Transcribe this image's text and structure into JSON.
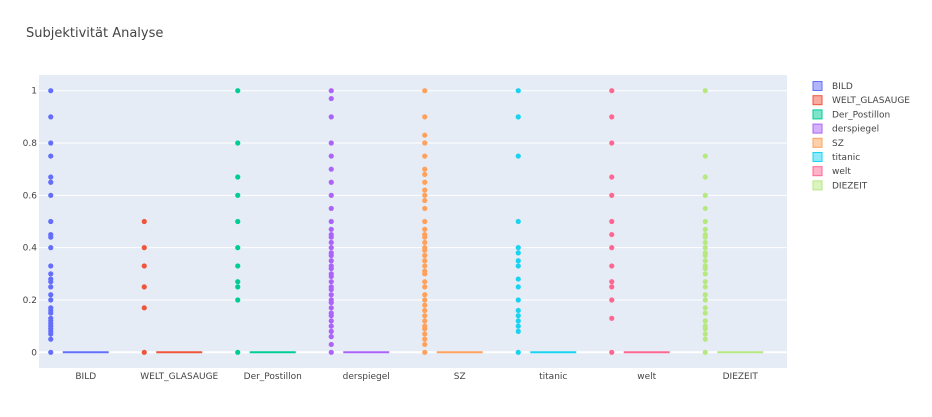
{
  "chart_data": {
    "type": "box",
    "title": "Subjektivität Analyse",
    "ylim": [
      -0.06,
      1.06
    ],
    "yticks": [
      0,
      0.2,
      0.4,
      0.6,
      0.8,
      1
    ],
    "ytick_labels": [
      "0",
      "0.2",
      "0.4",
      "0.6",
      "0.8",
      "1"
    ],
    "grid": true,
    "legend_position": "right",
    "categories": [
      "BILD",
      "WELT_GLASAUGE",
      "Der_Postillon",
      "derspiegel",
      "SZ",
      "titanic",
      "welt",
      "DIEZEIT"
    ],
    "series": [
      {
        "name": "BILD",
        "color": "#636efa",
        "median": 0,
        "points": [
          0,
          0.05,
          0.07,
          0.08,
          0.09,
          0.1,
          0.11,
          0.12,
          0.13,
          0.15,
          0.16,
          0.17,
          0.2,
          0.22,
          0.25,
          0.27,
          0.28,
          0.3,
          0.33,
          0.4,
          0.44,
          0.45,
          0.5,
          0.6,
          0.65,
          0.67,
          0.75,
          0.8,
          0.9,
          1.0
        ]
      },
      {
        "name": "WELT_GLASAUGE",
        "color": "#ef553b",
        "median": 0,
        "points": [
          0,
          0.17,
          0.25,
          0.33,
          0.4,
          0.5
        ]
      },
      {
        "name": "Der_Postillon",
        "color": "#00cc96",
        "median": 0,
        "points": [
          0,
          0.2,
          0.25,
          0.27,
          0.33,
          0.4,
          0.5,
          0.6,
          0.67,
          0.8,
          1.0
        ]
      },
      {
        "name": "derspiegel",
        "color": "#ab63fa",
        "median": 0,
        "points": [
          0,
          0.03,
          0.06,
          0.08,
          0.1,
          0.12,
          0.14,
          0.15,
          0.17,
          0.19,
          0.2,
          0.22,
          0.24,
          0.25,
          0.27,
          0.29,
          0.3,
          0.32,
          0.33,
          0.35,
          0.37,
          0.38,
          0.4,
          0.42,
          0.44,
          0.45,
          0.47,
          0.5,
          0.55,
          0.6,
          0.65,
          0.7,
          0.75,
          0.8,
          0.9,
          0.97,
          1.0
        ]
      },
      {
        "name": "SZ",
        "color": "#ffa15a",
        "median": 0,
        "points": [
          0,
          0.03,
          0.05,
          0.07,
          0.09,
          0.1,
          0.12,
          0.14,
          0.16,
          0.18,
          0.2,
          0.22,
          0.25,
          0.27,
          0.3,
          0.31,
          0.33,
          0.35,
          0.37,
          0.39,
          0.4,
          0.42,
          0.44,
          0.45,
          0.47,
          0.5,
          0.55,
          0.58,
          0.6,
          0.62,
          0.65,
          0.68,
          0.7,
          0.75,
          0.8,
          0.83,
          0.9,
          1.0
        ]
      },
      {
        "name": "titanic",
        "color": "#19d3f3",
        "median": 0,
        "points": [
          0,
          0.08,
          0.1,
          0.12,
          0.14,
          0.16,
          0.2,
          0.25,
          0.28,
          0.33,
          0.35,
          0.38,
          0.4,
          0.5,
          0.75,
          0.9,
          1.0
        ]
      },
      {
        "name": "welt",
        "color": "#ff6692",
        "median": 0,
        "points": [
          0,
          0.13,
          0.2,
          0.25,
          0.27,
          0.33,
          0.4,
          0.45,
          0.5,
          0.6,
          0.67,
          0.8,
          0.9,
          1.0
        ]
      },
      {
        "name": "DIEZEIT",
        "color": "#b6e880",
        "median": 0,
        "points": [
          0,
          0.05,
          0.07,
          0.09,
          0.1,
          0.12,
          0.15,
          0.17,
          0.2,
          0.22,
          0.25,
          0.27,
          0.3,
          0.32,
          0.33,
          0.35,
          0.37,
          0.38,
          0.4,
          0.42,
          0.44,
          0.45,
          0.47,
          0.5,
          0.55,
          0.6,
          0.67,
          0.75,
          1.0
        ]
      }
    ]
  }
}
